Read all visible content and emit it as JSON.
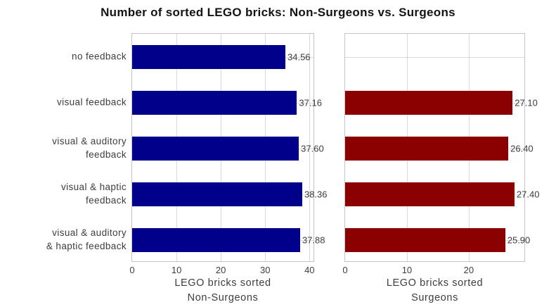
{
  "title": "Number of sorted LEGO bricks: Non-Surgeons vs. Surgeons",
  "colors": {
    "background": "#ffffff",
    "non_surgeons_bar": "#00008B",
    "surgeons_bar": "#8B0000",
    "gridline": "#d9d9d9",
    "plot_border": "#c3c3c3",
    "label_text": "#3d3d3d",
    "title_text": "#141414"
  },
  "chart_data": {
    "type": "bar",
    "orientation": "horizontal",
    "grid": true,
    "title": "Number of sorted LEGO bricks: Non-Surgeons vs. Surgeons",
    "categories": [
      [
        "no feedback"
      ],
      [
        "visual feedback"
      ],
      [
        "visual & auditory",
        "feedback"
      ],
      [
        "visual & haptic",
        "feedback"
      ],
      [
        "visual & auditory",
        "& haptic feedback"
      ]
    ],
    "panels": [
      {
        "name": "Non-Surgeons",
        "bar_color": "#00008B",
        "values": [
          34.56,
          37.16,
          37.6,
          38.36,
          37.88
        ],
        "value_labels": [
          "34.56",
          "37.16",
          "37.60",
          "38.36",
          "37.88"
        ],
        "xlim": [
          0,
          40.9
        ],
        "xticks": [
          0,
          10,
          20,
          30,
          40
        ],
        "xtick_labels": [
          "0",
          "10",
          "20",
          "30",
          "40"
        ],
        "xlabel_lines": [
          "LEGO bricks sorted",
          "Non-Surgeons"
        ]
      },
      {
        "name": "Surgeons",
        "bar_color": "#8B0000",
        "values": [
          null,
          27.1,
          26.4,
          27.4,
          25.9
        ],
        "value_labels": [
          null,
          "27.10",
          "26.40",
          "27.40",
          "25.90"
        ],
        "xlim": [
          0,
          29.0
        ],
        "xticks": [
          0,
          10,
          20
        ],
        "xtick_labels": [
          "0",
          "10",
          "20"
        ],
        "xlabel_lines": [
          "LEGO bricks sorted",
          "Surgeons"
        ]
      }
    ]
  }
}
